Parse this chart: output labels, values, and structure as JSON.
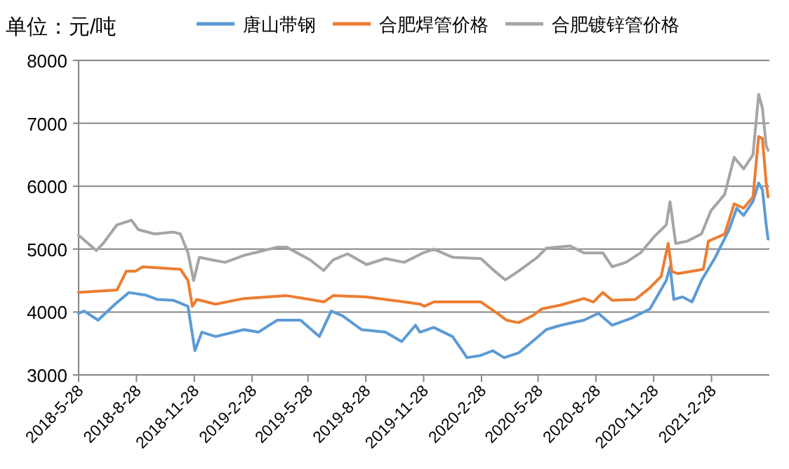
{
  "chart_data": {
    "type": "line",
    "ylabel": "单位：元/吨",
    "legend": "top",
    "grid": "y",
    "ylim": [
      3000,
      8000
    ],
    "yticks": [
      3000,
      4000,
      5000,
      6000,
      7000,
      8000
    ],
    "xlim": [
      "2018-05-28",
      "2021-05-31"
    ],
    "xticks": [
      {
        "value": "2018-05-28",
        "label": "2018-5-28"
      },
      {
        "value": "2018-08-28",
        "label": "2018-8-28"
      },
      {
        "value": "2018-11-28",
        "label": "2018-11-28"
      },
      {
        "value": "2019-02-28",
        "label": "2019-2-28"
      },
      {
        "value": "2019-05-28",
        "label": "2019-5-28"
      },
      {
        "value": "2019-08-28",
        "label": "2019-8-28"
      },
      {
        "value": "2019-11-28",
        "label": "2019-11-28"
      },
      {
        "value": "2020-02-28",
        "label": "2020-2-28"
      },
      {
        "value": "2020-05-28",
        "label": "2020-5-28"
      },
      {
        "value": "2020-08-28",
        "label": "2020-8-28"
      },
      {
        "value": "2020-11-28",
        "label": "2020-11-28"
      },
      {
        "value": "2021-02-28",
        "label": "2021-2-28"
      }
    ],
    "series": [
      {
        "name": "唐山带钢",
        "color": "#5b9bd5",
        "x": [
          "2018-05-28",
          "2018-06-06",
          "2018-06-28",
          "2018-07-25",
          "2018-08-16",
          "2018-09-11",
          "2018-09-30",
          "2018-10-26",
          "2018-11-18",
          "2018-11-29",
          "2018-12-10",
          "2019-01-01",
          "2019-02-15",
          "2019-03-10",
          "2019-04-09",
          "2019-05-16",
          "2019-06-15",
          "2019-07-04",
          "2019-07-22",
          "2019-08-21",
          "2019-09-28",
          "2019-10-24",
          "2019-11-15",
          "2019-11-22",
          "2019-12-14",
          "2020-01-13",
          "2020-02-05",
          "2020-02-27",
          "2020-03-17",
          "2020-04-04",
          "2020-04-27",
          "2020-05-19",
          "2020-06-10",
          "2020-07-03",
          "2020-08-09",
          "2020-09-01",
          "2020-09-23",
          "2020-10-23",
          "2020-11-22",
          "2020-12-18",
          "2020-12-24",
          "2020-12-30",
          "2021-01-13",
          "2021-01-28",
          "2021-02-12",
          "2021-03-06",
          "2021-03-28",
          "2021-04-09",
          "2021-04-20",
          "2021-05-05",
          "2021-05-14",
          "2021-05-20",
          "2021-05-26",
          "2021-05-29"
        ],
        "values": [
          3980,
          4015,
          3870,
          4125,
          4310,
          4270,
          4200,
          4185,
          4090,
          3385,
          3680,
          3610,
          3720,
          3680,
          3870,
          3870,
          3610,
          4015,
          3940,
          3720,
          3680,
          3530,
          3790,
          3680,
          3755,
          3610,
          3275,
          3310,
          3385,
          3275,
          3350,
          3530,
          3720,
          3790,
          3870,
          3980,
          3790,
          3900,
          4050,
          4500,
          4720,
          4200,
          4240,
          4160,
          4500,
          4870,
          5310,
          5650,
          5535,
          5760,
          6050,
          5940,
          5385,
          5160
        ]
      },
      {
        "name": "合肥焊管价格",
        "color": "#ed7d31",
        "x": [
          "2018-05-28",
          "2018-07-28",
          "2018-08-12",
          "2018-08-27",
          "2018-09-07",
          "2018-11-06",
          "2018-11-18",
          "2018-11-25",
          "2018-12-02",
          "2019-01-01",
          "2019-02-15",
          "2019-04-24",
          "2019-05-31",
          "2019-06-22",
          "2019-07-07",
          "2019-08-29",
          "2019-10-28",
          "2019-11-23",
          "2019-11-29",
          "2019-12-14",
          "2020-02-27",
          "2020-03-24",
          "2020-04-08",
          "2020-04-27",
          "2020-05-19",
          "2020-06-03",
          "2020-07-03",
          "2020-08-09",
          "2020-08-24",
          "2020-09-08",
          "2020-09-23",
          "2020-10-30",
          "2020-11-22",
          "2020-12-10",
          "2020-12-21",
          "2020-12-27",
          "2021-01-05",
          "2021-02-15",
          "2021-02-23",
          "2021-03-21",
          "2021-04-05",
          "2021-04-20",
          "2021-05-05",
          "2021-05-14",
          "2021-05-20",
          "2021-05-26",
          "2021-05-29"
        ],
        "values": [
          4310,
          4350,
          4650,
          4650,
          4720,
          4680,
          4500,
          4090,
          4200,
          4125,
          4215,
          4260,
          4200,
          4160,
          4260,
          4240,
          4160,
          4125,
          4090,
          4160,
          4160,
          3980,
          3870,
          3830,
          3940,
          4050,
          4110,
          4215,
          4160,
          4310,
          4185,
          4200,
          4385,
          4570,
          5090,
          4645,
          4610,
          4680,
          5125,
          5240,
          5720,
          5650,
          5830,
          6790,
          6755,
          6050,
          5830
        ]
      },
      {
        "name": "合肥镀锌管价格",
        "color": "#a5a5a5",
        "x": [
          "2018-05-28",
          "2018-06-25",
          "2018-07-06",
          "2018-07-28",
          "2018-08-20",
          "2018-08-31",
          "2018-09-26",
          "2018-10-26",
          "2018-11-06",
          "2018-11-18",
          "2018-11-27",
          "2018-12-06",
          "2018-12-25",
          "2019-01-16",
          "2019-02-15",
          "2019-04-09",
          "2019-04-24",
          "2019-05-31",
          "2019-06-22",
          "2019-07-07",
          "2019-07-30",
          "2019-08-29",
          "2019-09-28",
          "2019-10-28",
          "2019-11-27",
          "2019-12-14",
          "2020-01-13",
          "2020-02-27",
          "2020-03-20",
          "2020-04-06",
          "2020-04-27",
          "2020-05-27",
          "2020-06-10",
          "2020-07-18",
          "2020-08-09",
          "2020-09-08",
          "2020-09-23",
          "2020-10-15",
          "2020-11-07",
          "2020-11-29",
          "2020-12-18",
          "2020-12-24",
          "2021-01-02",
          "2021-01-20",
          "2021-02-12",
          "2021-02-27",
          "2021-03-21",
          "2021-04-05",
          "2021-04-20",
          "2021-05-05",
          "2021-05-14",
          "2021-05-20",
          "2021-05-26",
          "2021-05-29"
        ],
        "values": [
          5222,
          4978,
          5090,
          5385,
          5460,
          5310,
          5240,
          5270,
          5240,
          4940,
          4500,
          4870,
          4830,
          4790,
          4900,
          5030,
          5030,
          4830,
          4660,
          4830,
          4925,
          4755,
          4850,
          4790,
          4940,
          5000,
          4870,
          4850,
          4650,
          4510,
          4650,
          4870,
          5015,
          5050,
          4940,
          4940,
          4720,
          4790,
          4940,
          5200,
          5385,
          5755,
          5090,
          5125,
          5240,
          5610,
          5870,
          6460,
          6275,
          6500,
          7460,
          7240,
          6640,
          6570
        ]
      }
    ]
  }
}
